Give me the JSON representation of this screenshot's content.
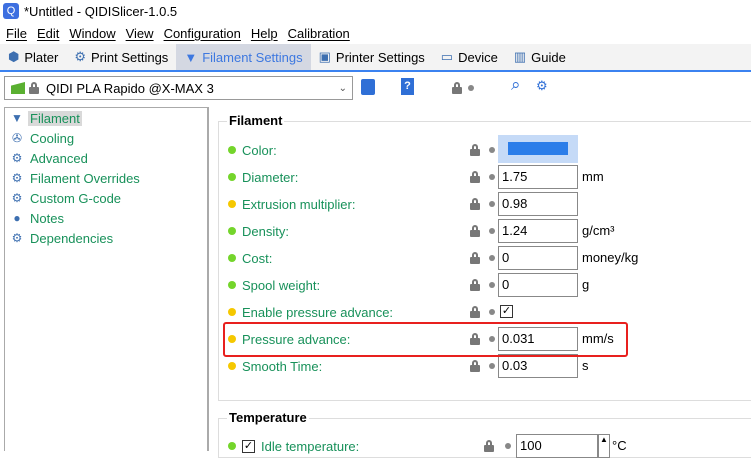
{
  "window": {
    "title": "*Untitled - QIDISlicer-1.0.5"
  },
  "menu": [
    "File",
    "Edit",
    "Window",
    "View",
    "Configuration",
    "Help",
    "Calibration"
  ],
  "tabs": [
    {
      "label": "Plater",
      "icon": "plater-icon"
    },
    {
      "label": "Print Settings",
      "icon": "gear-icon"
    },
    {
      "label": "Filament Settings",
      "icon": "filament-icon",
      "active": true
    },
    {
      "label": "Printer Settings",
      "icon": "printer-icon"
    },
    {
      "label": "Device",
      "icon": "device-icon"
    },
    {
      "label": "Guide",
      "icon": "guide-icon"
    }
  ],
  "preset": {
    "name": "QIDI PLA Rapido @X-MAX 3"
  },
  "sidebar": {
    "items": [
      {
        "label": "Filament",
        "selected": true
      },
      {
        "label": "Cooling"
      },
      {
        "label": "Advanced"
      },
      {
        "label": "Filament Overrides"
      },
      {
        "label": "Custom G-code"
      },
      {
        "label": "Notes"
      },
      {
        "label": "Dependencies"
      }
    ]
  },
  "filament": {
    "title": "Filament",
    "rows": [
      {
        "label": "Color:",
        "value": "",
        "unit": "",
        "mode": "simple",
        "color": "#2b7de9"
      },
      {
        "label": "Diameter:",
        "value": "1.75",
        "unit": "mm",
        "mode": "simple"
      },
      {
        "label": "Extrusion multiplier:",
        "value": "0.98",
        "unit": "",
        "mode": "advanced"
      },
      {
        "label": "Density:",
        "value": "1.24",
        "unit": "g/cm³",
        "mode": "simple"
      },
      {
        "label": "Cost:",
        "value": "0",
        "unit": "money/kg",
        "mode": "simple"
      },
      {
        "label": "Spool weight:",
        "value": "0",
        "unit": "g",
        "mode": "simple"
      },
      {
        "label": "Enable pressure advance:",
        "checked": true,
        "mode": "advanced"
      },
      {
        "label": "Pressure advance:",
        "value": "0.031",
        "unit": "mm/s",
        "mode": "advanced"
      },
      {
        "label": "Smooth Time:",
        "value": "0.03",
        "unit": "s",
        "mode": "advanced"
      }
    ]
  },
  "temperature": {
    "title": "Temperature",
    "idle": {
      "label": "Idle temperature:",
      "value": "100",
      "unit": "°C",
      "checked": true
    }
  },
  "colors": {
    "simple": "#74d52b",
    "advanced": "#f5c800",
    "accent": "#3b82f0",
    "highlight": "#e8201e"
  }
}
